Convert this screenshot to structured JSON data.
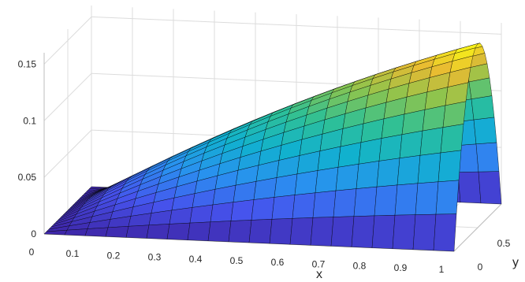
{
  "chart_data": {
    "type": "surface",
    "function": "z = x * y * (1 - y) * (0.85 - 0.20 * x)",
    "x": [
      0,
      0.05,
      0.1,
      0.15,
      0.2,
      0.25,
      0.3,
      0.35,
      0.4,
      0.45,
      0.5,
      0.55,
      0.6,
      0.65,
      0.7,
      0.75,
      0.8,
      0.85,
      0.9,
      0.95,
      1
    ],
    "y": [
      0,
      0.05,
      0.1,
      0.15,
      0.2,
      0.25,
      0.3,
      0.35,
      0.4,
      0.45,
      0.5,
      0.55,
      0.6,
      0.65,
      0.7,
      0.75,
      0.8,
      0.85,
      0.9,
      0.95,
      1
    ],
    "z_peak": 0.1625,
    "xlabel": "x",
    "ylabel": "y",
    "zlabel": "",
    "xlim": [
      0,
      1
    ],
    "ylim": [
      0,
      1
    ],
    "zlim": [
      0,
      0.16
    ],
    "xticks": [
      "0",
      "0.1",
      "0.2",
      "0.3",
      "0.4",
      "0.5",
      "0.6",
      "0.7",
      "0.8",
      "0.9",
      "1"
    ],
    "yticks": [
      "0",
      "0.5"
    ],
    "zticks": [
      "0",
      "0.05",
      "0.1",
      "0.15"
    ],
    "colormap": "parula",
    "grid": true,
    "box": false
  },
  "colors": {
    "grid": "#dcdcdc",
    "axis": "#262626",
    "edge": "#000000"
  }
}
